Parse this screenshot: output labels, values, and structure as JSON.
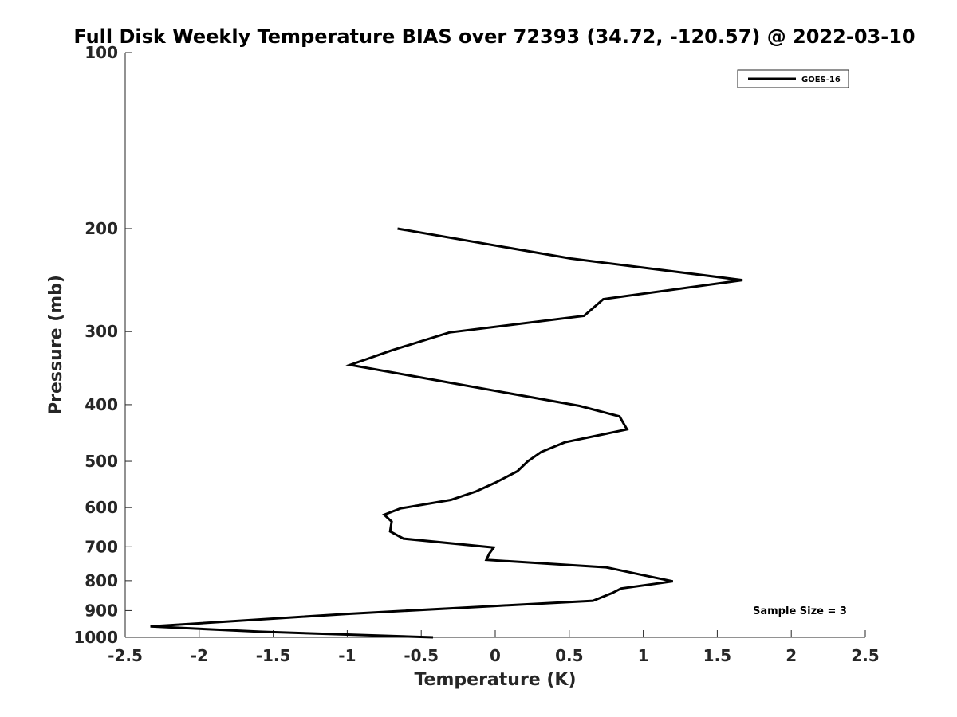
{
  "chart_data": {
    "type": "line",
    "title": "Full Disk Weekly Temperature BIAS over 72393 (34.72, -120.57) @ 2022-03-10",
    "xlabel": "Temperature (K)",
    "ylabel": "Pressure (mb)",
    "xlim": [
      -2.5,
      2.5
    ],
    "ylim": [
      100,
      1000
    ],
    "yscale": "log",
    "y_reversed": true,
    "grid": false,
    "legend_position": "top-right",
    "x_ticks": [
      "-2.5",
      "-2",
      "-1.5",
      "-1",
      "-0.5",
      "0",
      "0.5",
      "1",
      "1.5",
      "2",
      "2.5"
    ],
    "y_ticks": [
      "100",
      "200",
      "300",
      "400",
      "500",
      "600",
      "700",
      "800",
      "900",
      "1000"
    ],
    "annotation": "Sample Size = 3",
    "series": [
      {
        "name": "GOES-16",
        "color": "#000000",
        "x": [
          -0.66,
          0.51,
          1.67,
          0.73,
          0.6,
          -0.31,
          -0.7,
          -0.98,
          0.57,
          0.84,
          0.89,
          0.47,
          0.31,
          0.22,
          0.15,
          0.0,
          -0.13,
          -0.3,
          -0.64,
          -0.75,
          -0.7,
          -0.71,
          -0.62,
          -0.01,
          -0.04,
          -0.06,
          0.75,
          0.97,
          1.2,
          0.85,
          0.79,
          0.66,
          -0.01,
          -1.0,
          -2.33,
          -1.59,
          -0.42
        ],
        "y": [
          200,
          225,
          245,
          264,
          282,
          301,
          323,
          342,
          402,
          419,
          441,
          464,
          482,
          500,
          520,
          544,
          563,
          582,
          602,
          617,
          634,
          659,
          678,
          702,
          719,
          737,
          759,
          780,
          802,
          825,
          840,
          866,
          884,
          912,
          958,
          978,
          1000
        ]
      }
    ]
  }
}
